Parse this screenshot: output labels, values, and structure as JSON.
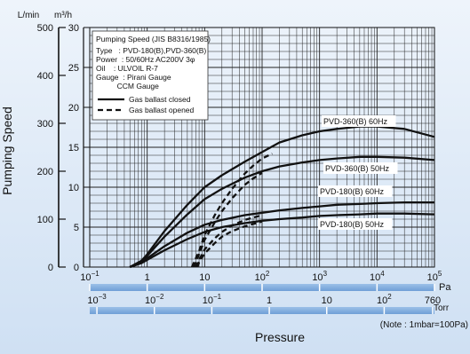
{
  "chart_data": {
    "type": "line",
    "ylabel": "Pumping Speed",
    "xlabel": "Pressure",
    "x_scale": "log",
    "xlim": [
      0.1,
      100000
    ],
    "x_unit": "Pa",
    "y_unit_left": "L/min",
    "y_unit_right": "m³/h",
    "ylim_m3h": [
      0,
      30
    ],
    "ylim_lmin": [
      0,
      500
    ],
    "torr_unit": "Torr",
    "note": "(Note : 1mbar=100Pa)",
    "pa_ticks": [
      {
        "base": "10",
        "exp": "−1"
      },
      {
        "base": "1",
        "exp": ""
      },
      {
        "base": "10",
        "exp": ""
      },
      {
        "base": "10",
        "exp": "2"
      },
      {
        "base": "10",
        "exp": "3"
      },
      {
        "base": "10",
        "exp": "4"
      },
      {
        "base": "10",
        "exp": "5"
      }
    ],
    "torr_ticks": [
      {
        "label": "10",
        "exp": "−3",
        "pa": 0.1333
      },
      {
        "label": "10",
        "exp": "−2",
        "pa": 1.333
      },
      {
        "label": "10",
        "exp": "−1",
        "pa": 13.33
      },
      {
        "label": "1",
        "exp": "",
        "pa": 133.3
      },
      {
        "label": "10",
        "exp": "",
        "pa": 1333
      },
      {
        "label": "10",
        "exp": "2",
        "pa": 13332
      },
      {
        "label": "760",
        "exp": "",
        "pa": 101325
      }
    ],
    "lmin_ticks": [
      "0",
      "100",
      "200",
      "300",
      "400",
      "500"
    ],
    "m3h_ticks": [
      "0",
      "5",
      "10",
      "15",
      "20",
      "25",
      "30"
    ],
    "legend_lines": [
      "Pumping Speed (JIS B8316/1985)",
      "Type   : PVD-180(B),PVD-360(B)",
      "Power  : 50/60Hz AC200V 3φ",
      "Oil    : ULVOIL R-7",
      "Gauge  : Pirani Gauge",
      "          CCM Gauge"
    ],
    "legend_entries": [
      "Gas ballast closed",
      "Gas ballast opened"
    ],
    "series": [
      {
        "name": "PVD-360(B) 60Hz",
        "style": "solid",
        "x": [
          0.5,
          0.8,
          1,
          2,
          5,
          10,
          20,
          50,
          100,
          200,
          500,
          1000,
          2000,
          5000,
          10000,
          30000,
          100000
        ],
        "y": [
          0,
          0.8,
          1.6,
          4.5,
          7.8,
          10,
          11.5,
          13.2,
          14.4,
          15.6,
          16.5,
          17,
          17.3,
          17.6,
          17.6,
          17.3,
          16.3
        ]
      },
      {
        "name": "PVD-360(B) 50Hz",
        "style": "solid",
        "x": [
          0.5,
          0.8,
          1,
          2,
          5,
          10,
          20,
          50,
          100,
          200,
          500,
          1000,
          2000,
          5000,
          10000,
          30000,
          100000
        ],
        "y": [
          0,
          0.7,
          1.4,
          3.8,
          6.6,
          8.5,
          9.8,
          11.2,
          12,
          12.6,
          13.1,
          13.4,
          13.6,
          13.8,
          13.8,
          13.7,
          13.4
        ]
      },
      {
        "name": "PVD-180(B) 60Hz",
        "style": "solid",
        "x": [
          0.5,
          0.8,
          1,
          2,
          5,
          10,
          20,
          50,
          100,
          200,
          500,
          1000,
          2000,
          5000,
          10000,
          30000,
          100000
        ],
        "y": [
          0,
          0.6,
          1.1,
          2.6,
          4.3,
          5.3,
          5.9,
          6.5,
          6.8,
          7.1,
          7.4,
          7.6,
          7.8,
          7.9,
          8,
          8.1,
          8.1
        ]
      },
      {
        "name": "PVD-180(B) 50Hz",
        "style": "solid",
        "x": [
          0.5,
          0.8,
          1,
          2,
          5,
          10,
          20,
          50,
          100,
          200,
          500,
          1000,
          2000,
          5000,
          10000,
          30000,
          100000
        ],
        "y": [
          0,
          0.5,
          0.9,
          2.1,
          3.5,
          4.4,
          5,
          5.5,
          5.8,
          6,
          6.2,
          6.4,
          6.5,
          6.6,
          6.7,
          6.7,
          6.6
        ]
      },
      {
        "name": "",
        "style": "dashed",
        "x": [
          6,
          8,
          10,
          15,
          20,
          30,
          50,
          70,
          100,
          150
        ],
        "y": [
          0,
          2,
          4,
          6.5,
          8,
          9.8,
          11.7,
          12.7,
          13.6,
          14.2
        ]
      },
      {
        "name": "",
        "style": "dashed",
        "x": [
          6.5,
          8,
          10,
          15,
          20,
          30,
          50,
          70,
          100
        ],
        "y": [
          0,
          1.6,
          3.4,
          5.6,
          7,
          8.6,
          10.3,
          11.1,
          11.8
        ]
      },
      {
        "name": "",
        "style": "dashed",
        "x": [
          7,
          8,
          10,
          15,
          20,
          30,
          50,
          100
        ],
        "y": [
          0,
          0.9,
          2.2,
          3.6,
          4.4,
          5.2,
          5.9,
          6.5
        ]
      },
      {
        "name": "",
        "style": "dashed",
        "x": [
          7.5,
          8,
          10,
          15,
          20,
          30,
          50,
          100
        ],
        "y": [
          0,
          0.6,
          1.7,
          3,
          3.8,
          4.5,
          5.1,
          5.7
        ]
      }
    ]
  }
}
